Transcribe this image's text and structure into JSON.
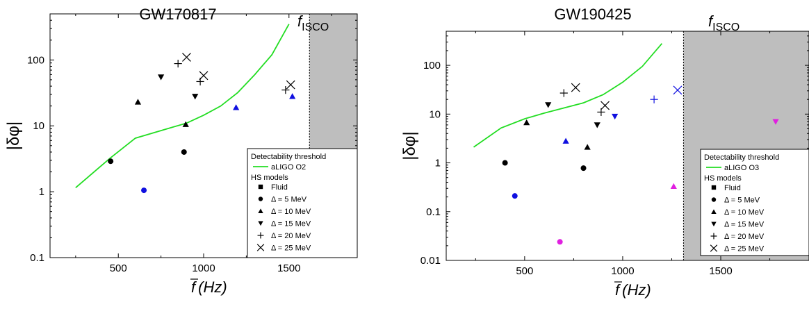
{
  "chart_data": [
    {
      "type": "scatter",
      "title": "GW170817",
      "xlabel_symbol": "f",
      "xlabel_unit": "(Hz)",
      "ylabel": "|δφ|",
      "xlim": [
        100,
        1900
      ],
      "ylim": [
        0.1,
        500
      ],
      "yscale": "log",
      "xticks": [
        500,
        1000,
        1500
      ],
      "yticks": [
        0.1,
        1,
        10,
        100
      ],
      "ytick_labels": [
        "0.1",
        "1",
        "10",
        "100"
      ],
      "grid": false,
      "isco": {
        "label_main": "f",
        "label_sub": "ISCO",
        "x": 1620
      },
      "threshold": {
        "name": "aLIGO O2",
        "x": [
          250,
          450,
          600,
          900,
          1000,
          1100,
          1200,
          1300,
          1400,
          1500
        ],
        "y": [
          1.15,
          3.2,
          6.5,
          11,
          14.5,
          20,
          32,
          60,
          120,
          350
        ]
      },
      "series": [
        {
          "marker": "circle",
          "points": [
            [
              455,
              2.9,
              "#000000"
            ],
            [
              885,
              4.0,
              "#000000"
            ],
            [
              650,
              1.05,
              "#1010e0"
            ]
          ]
        },
        {
          "marker": "triangle-up",
          "points": [
            [
              615,
              23,
              "#000000"
            ],
            [
              895,
              10.5,
              "#000000"
            ],
            [
              1190,
              19,
              "#1010e0"
            ],
            [
              1520,
              28,
              "#1010e0"
            ]
          ]
        },
        {
          "marker": "triangle-down",
          "points": [
            [
              750,
              55,
              "#000000"
            ],
            [
              950,
              28,
              "#000000"
            ]
          ]
        },
        {
          "marker": "plus",
          "points": [
            [
              850,
              88,
              "#000000"
            ],
            [
              980,
              47,
              "#000000"
            ],
            [
              1480,
              35,
              "#000000"
            ]
          ]
        },
        {
          "marker": "cross",
          "points": [
            [
              900,
              110,
              "#000000"
            ],
            [
              1000,
              58,
              "#000000"
            ],
            [
              1510,
              42,
              "#000000"
            ]
          ]
        }
      ],
      "legend": {
        "header": "Detectability threshold",
        "line_label": "aLIGO O2",
        "models_header": "HS models",
        "items": [
          {
            "marker": "square",
            "label": "Fluid"
          },
          {
            "marker": "circle",
            "label": "Δ = 5 MeV"
          },
          {
            "marker": "triangle-up",
            "label": "Δ = 10 MeV"
          },
          {
            "marker": "triangle-down",
            "label": "Δ = 15 MeV"
          },
          {
            "marker": "plus",
            "label": "Δ = 20 MeV"
          },
          {
            "marker": "cross",
            "label": "Δ = 25 MeV"
          }
        ]
      }
    },
    {
      "type": "scatter",
      "title": "GW190425",
      "xlabel_symbol": "f",
      "xlabel_unit": "(Hz)",
      "ylabel": "|δφ|",
      "xlim": [
        100,
        1950
      ],
      "ylim": [
        0.01,
        500
      ],
      "yscale": "log",
      "xticks": [
        500,
        1000,
        1500
      ],
      "yticks": [
        0.01,
        0.1,
        1,
        10,
        100
      ],
      "ytick_labels": [
        "0.01",
        "0.1",
        "1",
        "10",
        "100"
      ],
      "grid": false,
      "isco": {
        "label_main": "f",
        "label_sub": "ISCO",
        "x": 1310
      },
      "threshold": {
        "name": "aLIGO O3",
        "x": [
          240,
          380,
          500,
          600,
          800,
          900,
          1000,
          1100,
          1200
        ],
        "y": [
          2.1,
          5.2,
          8,
          10.5,
          17,
          25,
          45,
          95,
          280
        ]
      },
      "series": [
        {
          "marker": "circle",
          "points": [
            [
              400,
              1.0,
              "#000000"
            ],
            [
              800,
              0.78,
              "#000000"
            ],
            [
              450,
              0.21,
              "#1010e0"
            ],
            [
              680,
              0.024,
              "#e020e0"
            ]
          ]
        },
        {
          "marker": "triangle-up",
          "points": [
            [
              510,
              6.7,
              "#000000"
            ],
            [
              820,
              2.1,
              "#000000"
            ],
            [
              710,
              2.8,
              "#1010e0"
            ],
            [
              1260,
              0.33,
              "#e020e0"
            ]
          ]
        },
        {
          "marker": "triangle-down",
          "points": [
            [
              620,
              15.5,
              "#000000"
            ],
            [
              870,
              6.0,
              "#000000"
            ],
            [
              960,
              9.0,
              "#1010e0"
            ],
            [
              1780,
              7.0,
              "#e020e0"
            ]
          ]
        },
        {
          "marker": "plus",
          "points": [
            [
              700,
              27,
              "#000000"
            ],
            [
              890,
              11,
              "#000000"
            ],
            [
              1160,
              20,
              "#1010e0"
            ]
          ]
        },
        {
          "marker": "cross",
          "points": [
            [
              760,
              35,
              "#000000"
            ],
            [
              910,
              15,
              "#000000"
            ],
            [
              1280,
              31,
              "#1010e0"
            ]
          ]
        }
      ],
      "legend": {
        "header": "Detectability threshold",
        "line_label": "aLIGO O3",
        "models_header": "HS models",
        "items": [
          {
            "marker": "square",
            "label": "Fluid"
          },
          {
            "marker": "circle",
            "label": "Δ = 5 MeV"
          },
          {
            "marker": "triangle-up",
            "label": "Δ = 10 MeV"
          },
          {
            "marker": "triangle-down",
            "label": "Δ = 15 MeV"
          },
          {
            "marker": "plus",
            "label": "Δ = 20 MeV"
          },
          {
            "marker": "cross",
            "label": "Δ = 25 MeV"
          }
        ]
      }
    }
  ],
  "colors": {
    "threshold_line": "#22dd22",
    "isco_region": "#bebebe",
    "black": "#000000",
    "blue": "#1010e0",
    "magenta": "#e020e0"
  }
}
